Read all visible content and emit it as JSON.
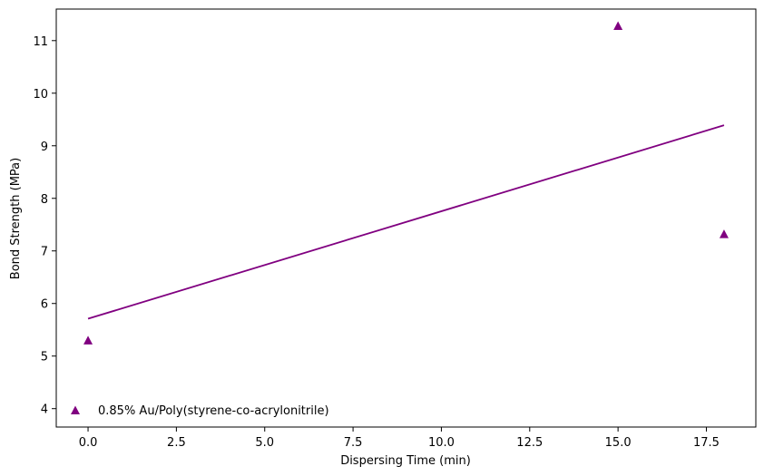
{
  "chart_data": {
    "type": "scatter",
    "xlabel": "Dispersing Time (min)",
    "ylabel": "Bond Strength (MPa)",
    "xlim": [
      -0.9,
      18.9
    ],
    "ylim": [
      3.65,
      11.6
    ],
    "xticks": [
      0.0,
      2.5,
      5.0,
      7.5,
      10.0,
      12.5,
      15.0,
      17.5
    ],
    "xtick_labels": [
      "0.0",
      "2.5",
      "5.0",
      "7.5",
      "10.0",
      "12.5",
      "15.0",
      "17.5"
    ],
    "yticks": [
      4,
      5,
      6,
      7,
      8,
      9,
      10,
      11
    ],
    "ytick_labels": [
      "4",
      "5",
      "6",
      "7",
      "8",
      "9",
      "10",
      "11"
    ],
    "grid": false,
    "legend_position": "lower-left",
    "series": [
      {
        "name": "0.85% Au/Poly(styrene-co-acrylonitrile)",
        "marker": "triangle",
        "color": "#800080",
        "x": [
          0,
          15,
          18
        ],
        "y": [
          5.3,
          11.28,
          7.32
        ]
      }
    ],
    "trendline": {
      "color": "#800080",
      "x": [
        0,
        18
      ],
      "y": [
        5.71,
        9.39
      ]
    }
  }
}
